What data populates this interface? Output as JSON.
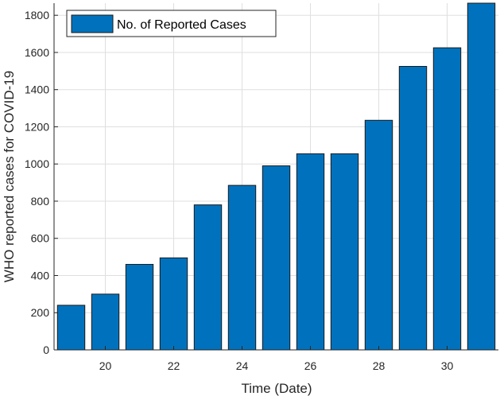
{
  "chart_data": {
    "type": "bar",
    "x": [
      19,
      20,
      21,
      22,
      23,
      24,
      25,
      26,
      27,
      28,
      29,
      30,
      31
    ],
    "values": [
      240,
      300,
      460,
      495,
      780,
      885,
      990,
      1055,
      1055,
      1235,
      1525,
      1625,
      1865
    ],
    "xticks": [
      20,
      22,
      24,
      26,
      28,
      30
    ],
    "yticks": [
      0,
      200,
      400,
      600,
      800,
      1000,
      1200,
      1400,
      1600,
      1800
    ],
    "xlim": [
      19,
      31
    ],
    "ylim": [
      0,
      1865
    ],
    "xlabel": "Time (Date)",
    "ylabel": "WHO reported cases for COVID-19",
    "legend": {
      "label": "No. of Reported Cases",
      "position": "top-left"
    },
    "bar_color": "#0072BD",
    "grid": true
  }
}
